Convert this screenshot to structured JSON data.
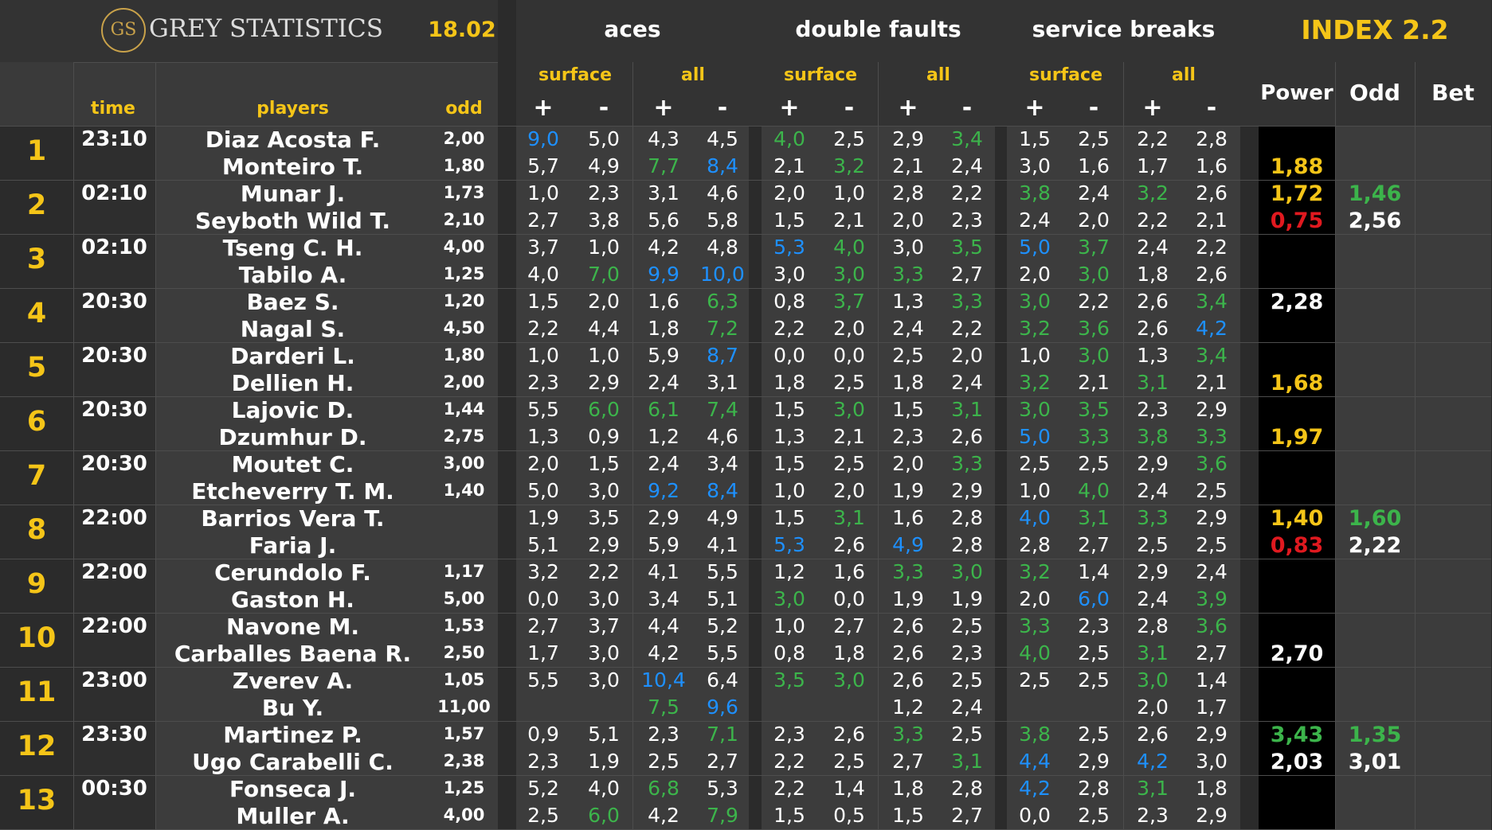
{
  "brand": {
    "logo_initials": "GS",
    "name": "GREY STATISTICS",
    "date": "18.02"
  },
  "groups": {
    "aces": "aces",
    "double_faults": "double faults",
    "service_breaks": "service breaks",
    "index": "INDEX 2.2"
  },
  "columns": {
    "time": "time",
    "players": "players",
    "odd": "odd",
    "surface": "surface",
    "all": "all",
    "plus": "+",
    "minus": "-",
    "power": "Power",
    "index_odd": "Odd",
    "bet": "Bet"
  },
  "colors": {
    "yellow": "#f5c518",
    "green": "#3cb44b",
    "blue": "#1e90ff",
    "red": "#e0191f",
    "white": "#ffffff"
  },
  "matches": [
    {
      "no": "1",
      "time": "23:10",
      "players": [
        {
          "name": "Diaz Acosta F.",
          "odd": "2,00",
          "stats": [
            "9,0",
            "5,0",
            "4,3",
            "4,5",
            "4,0",
            "2,5",
            "2,9",
            "3,4",
            "1,5",
            "2,5",
            "2,2",
            "2,8"
          ],
          "tones": [
            "b",
            "",
            "",
            "",
            "g",
            "",
            "",
            "g",
            "",
            "",
            "",
            ""
          ],
          "power": "",
          "power_tone": "",
          "idx_odd": "",
          "idx_tone": ""
        },
        {
          "name": "Monteiro T.",
          "odd": "1,80",
          "stats": [
            "5,7",
            "4,9",
            "7,7",
            "8,4",
            "2,1",
            "3,2",
            "2,1",
            "2,4",
            "3,0",
            "1,6",
            "1,7",
            "1,6"
          ],
          "tones": [
            "",
            "",
            "g",
            "b",
            "",
            "g",
            "",
            "",
            "",
            "",
            "",
            ""
          ],
          "power": "1,88",
          "power_tone": "y",
          "idx_odd": "",
          "idx_tone": ""
        }
      ]
    },
    {
      "no": "2",
      "time": "02:10",
      "players": [
        {
          "name": "Munar J.",
          "odd": "1,73",
          "stats": [
            "1,0",
            "2,3",
            "3,1",
            "4,6",
            "2,0",
            "1,0",
            "2,8",
            "2,2",
            "3,8",
            "2,4",
            "3,2",
            "2,6"
          ],
          "tones": [
            "",
            "",
            "",
            "",
            "",
            "",
            "",
            "",
            "g",
            "",
            "g",
            ""
          ],
          "power": "1,72",
          "power_tone": "y",
          "idx_odd": "1,46",
          "idx_tone": "g"
        },
        {
          "name": "Seyboth Wild T.",
          "odd": "2,10",
          "stats": [
            "2,7",
            "3,8",
            "5,6",
            "5,8",
            "1,5",
            "2,1",
            "2,0",
            "2,3",
            "2,4",
            "2,0",
            "2,2",
            "2,1"
          ],
          "tones": [
            "",
            "",
            "",
            "",
            "",
            "",
            "",
            "",
            "",
            "",
            "",
            ""
          ],
          "power": "0,75",
          "power_tone": "r",
          "idx_odd": "2,56",
          "idx_tone": ""
        }
      ]
    },
    {
      "no": "3",
      "time": "02:10",
      "players": [
        {
          "name": "Tseng C. H.",
          "odd": "4,00",
          "stats": [
            "3,7",
            "1,0",
            "4,2",
            "4,8",
            "5,3",
            "4,0",
            "3,0",
            "3,5",
            "5,0",
            "3,7",
            "2,4",
            "2,2"
          ],
          "tones": [
            "",
            "",
            "",
            "",
            "b",
            "g",
            "",
            "g",
            "b",
            "g",
            "",
            ""
          ],
          "power": "",
          "power_tone": "",
          "idx_odd": "",
          "idx_tone": ""
        },
        {
          "name": "Tabilo A.",
          "odd": "1,25",
          "stats": [
            "4,0",
            "7,0",
            "9,9",
            "10,0",
            "3,0",
            "3,0",
            "3,3",
            "2,7",
            "2,0",
            "3,0",
            "1,8",
            "2,6"
          ],
          "tones": [
            "",
            "g",
            "b",
            "b",
            "",
            "g",
            "g",
            "",
            "",
            "g",
            "",
            ""
          ],
          "power": "",
          "power_tone": "",
          "idx_odd": "",
          "idx_tone": ""
        }
      ]
    },
    {
      "no": "4",
      "time": "20:30",
      "players": [
        {
          "name": "Baez S.",
          "odd": "1,20",
          "stats": [
            "1,5",
            "2,0",
            "1,6",
            "6,3",
            "0,8",
            "3,7",
            "1,3",
            "3,3",
            "3,0",
            "2,2",
            "2,6",
            "3,4"
          ],
          "tones": [
            "",
            "",
            "",
            "g",
            "",
            "g",
            "",
            "g",
            "g",
            "",
            "",
            "g"
          ],
          "power": "2,28",
          "power_tone": "",
          "idx_odd": "",
          "idx_tone": ""
        },
        {
          "name": "Nagal S.",
          "odd": "4,50",
          "stats": [
            "2,2",
            "4,4",
            "1,8",
            "7,2",
            "2,2",
            "2,0",
            "2,4",
            "2,2",
            "3,2",
            "3,6",
            "2,6",
            "4,2"
          ],
          "tones": [
            "",
            "",
            "",
            "g",
            "",
            "",
            "",
            "",
            "g",
            "g",
            "",
            "b"
          ],
          "power": "",
          "power_tone": "",
          "idx_odd": "",
          "idx_tone": ""
        }
      ]
    },
    {
      "no": "5",
      "time": "20:30",
      "players": [
        {
          "name": "Darderi L.",
          "odd": "1,80",
          "stats": [
            "1,0",
            "1,0",
            "5,9",
            "8,7",
            "0,0",
            "0,0",
            "2,5",
            "2,0",
            "1,0",
            "3,0",
            "1,3",
            "3,4"
          ],
          "tones": [
            "",
            "",
            "",
            "b",
            "",
            "",
            "",
            "",
            "",
            "g",
            "",
            "g"
          ],
          "power": "",
          "power_tone": "",
          "idx_odd": "",
          "idx_tone": ""
        },
        {
          "name": "Dellien H.",
          "odd": "2,00",
          "stats": [
            "2,3",
            "2,9",
            "2,4",
            "3,1",
            "1,8",
            "2,5",
            "1,8",
            "2,4",
            "3,2",
            "2,1",
            "3,1",
            "2,1"
          ],
          "tones": [
            "",
            "",
            "",
            "",
            "",
            "",
            "",
            "",
            "g",
            "",
            "g",
            ""
          ],
          "power": "1,68",
          "power_tone": "y",
          "idx_odd": "",
          "idx_tone": ""
        }
      ]
    },
    {
      "no": "6",
      "time": "20:30",
      "players": [
        {
          "name": "Lajovic D.",
          "odd": "1,44",
          "stats": [
            "5,5",
            "6,0",
            "6,1",
            "7,4",
            "1,5",
            "3,0",
            "1,5",
            "3,1",
            "3,0",
            "3,5",
            "2,3",
            "2,9"
          ],
          "tones": [
            "",
            "g",
            "g",
            "g",
            "",
            "g",
            "",
            "g",
            "g",
            "g",
            "",
            ""
          ],
          "power": "",
          "power_tone": "",
          "idx_odd": "",
          "idx_tone": ""
        },
        {
          "name": "Dzumhur D.",
          "odd": "2,75",
          "stats": [
            "1,3",
            "0,9",
            "1,2",
            "4,6",
            "1,3",
            "2,1",
            "2,3",
            "2,6",
            "5,0",
            "3,3",
            "3,8",
            "3,3"
          ],
          "tones": [
            "",
            "",
            "",
            "",
            "",
            "",
            "",
            "",
            "b",
            "g",
            "g",
            "g"
          ],
          "power": "1,97",
          "power_tone": "y",
          "idx_odd": "",
          "idx_tone": ""
        }
      ]
    },
    {
      "no": "7",
      "time": "20:30",
      "players": [
        {
          "name": "Moutet C.",
          "odd": "3,00",
          "stats": [
            "2,0",
            "1,5",
            "2,4",
            "3,4",
            "1,5",
            "2,5",
            "2,0",
            "3,3",
            "2,5",
            "2,5",
            "2,9",
            "3,6"
          ],
          "tones": [
            "",
            "",
            "",
            "",
            "",
            "",
            "",
            "g",
            "",
            "",
            "",
            "g"
          ],
          "power": "",
          "power_tone": "",
          "idx_odd": "",
          "idx_tone": ""
        },
        {
          "name": "Etcheverry T. M.",
          "odd": "1,40",
          "stats": [
            "5,0",
            "3,0",
            "9,2",
            "8,4",
            "1,0",
            "2,0",
            "1,9",
            "2,9",
            "1,0",
            "4,0",
            "2,4",
            "2,5"
          ],
          "tones": [
            "",
            "",
            "b",
            "b",
            "",
            "",
            "",
            "",
            "",
            "g",
            "",
            ""
          ],
          "power": "",
          "power_tone": "",
          "idx_odd": "",
          "idx_tone": ""
        }
      ]
    },
    {
      "no": "8",
      "time": "22:00",
      "players": [
        {
          "name": "Barrios Vera T.",
          "odd": "",
          "stats": [
            "1,9",
            "3,5",
            "2,9",
            "4,9",
            "1,5",
            "3,1",
            "1,6",
            "2,8",
            "4,0",
            "3,1",
            "3,3",
            "2,9"
          ],
          "tones": [
            "",
            "",
            "",
            "",
            "",
            "g",
            "",
            "",
            "b",
            "g",
            "g",
            ""
          ],
          "power": "1,40",
          "power_tone": "y",
          "idx_odd": "1,60",
          "idx_tone": "g"
        },
        {
          "name": "Faria J.",
          "odd": "",
          "stats": [
            "5,1",
            "2,9",
            "5,9",
            "4,1",
            "5,3",
            "2,6",
            "4,9",
            "2,8",
            "2,8",
            "2,7",
            "2,5",
            "2,5"
          ],
          "tones": [
            "",
            "",
            "",
            "",
            "b",
            "",
            "b",
            "",
            "",
            "",
            "",
            ""
          ],
          "power": "0,83",
          "power_tone": "r",
          "idx_odd": "2,22",
          "idx_tone": ""
        }
      ]
    },
    {
      "no": "9",
      "time": "22:00",
      "players": [
        {
          "name": "Cerundolo F.",
          "odd": "1,17",
          "stats": [
            "3,2",
            "2,2",
            "4,1",
            "5,5",
            "1,2",
            "1,6",
            "3,3",
            "3,0",
            "3,2",
            "1,4",
            "2,9",
            "2,4"
          ],
          "tones": [
            "",
            "",
            "",
            "",
            "",
            "",
            "g",
            "g",
            "g",
            "",
            "",
            ""
          ],
          "power": "",
          "power_tone": "",
          "idx_odd": "",
          "idx_tone": ""
        },
        {
          "name": "Gaston H.",
          "odd": "5,00",
          "stats": [
            "0,0",
            "3,0",
            "3,4",
            "5,1",
            "3,0",
            "0,0",
            "1,9",
            "1,9",
            "2,0",
            "6,0",
            "2,4",
            "3,9"
          ],
          "tones": [
            "",
            "",
            "",
            "",
            "g",
            "",
            "",
            "",
            "",
            "b",
            "",
            "g"
          ],
          "power": "",
          "power_tone": "",
          "idx_odd": "",
          "idx_tone": ""
        }
      ]
    },
    {
      "no": "10",
      "time": "22:00",
      "players": [
        {
          "name": "Navone M.",
          "odd": "1,53",
          "stats": [
            "2,7",
            "3,7",
            "4,4",
            "5,2",
            "1,0",
            "2,7",
            "2,6",
            "2,5",
            "3,3",
            "2,3",
            "2,8",
            "3,6"
          ],
          "tones": [
            "",
            "",
            "",
            "",
            "",
            "",
            "",
            "",
            "g",
            "",
            "",
            "g"
          ],
          "power": "",
          "power_tone": "",
          "idx_odd": "",
          "idx_tone": ""
        },
        {
          "name": "Carballes Baena R.",
          "odd": "2,50",
          "stats": [
            "1,7",
            "3,0",
            "4,2",
            "5,5",
            "0,8",
            "1,8",
            "2,6",
            "2,3",
            "4,0",
            "2,5",
            "3,1",
            "2,7"
          ],
          "tones": [
            "",
            "",
            "",
            "",
            "",
            "",
            "",
            "",
            "g",
            "",
            "g",
            ""
          ],
          "power": "2,70",
          "power_tone": "",
          "idx_odd": "",
          "idx_tone": ""
        }
      ]
    },
    {
      "no": "11",
      "time": "23:00",
      "players": [
        {
          "name": "Zverev A.",
          "odd": "1,05",
          "stats": [
            "5,5",
            "3,0",
            "10,4",
            "6,4",
            "3,5",
            "3,0",
            "2,6",
            "2,5",
            "2,5",
            "2,5",
            "3,0",
            "1,4"
          ],
          "tones": [
            "",
            "",
            "b",
            "",
            "g",
            "g",
            "",
            "",
            "",
            "",
            "g",
            ""
          ],
          "power": "",
          "power_tone": "",
          "idx_odd": "",
          "idx_tone": ""
        },
        {
          "name": "Bu Y.",
          "odd": "11,00",
          "stats": [
            "",
            "",
            "7,5",
            "9,6",
            "",
            "",
            "1,2",
            "2,4",
            "",
            "",
            "2,0",
            "1,7"
          ],
          "tones": [
            "",
            "",
            "g",
            "b",
            "",
            "",
            "",
            "",
            "",
            "",
            "",
            ""
          ],
          "power": "",
          "power_tone": "",
          "idx_odd": "",
          "idx_tone": ""
        }
      ]
    },
    {
      "no": "12",
      "time": "23:30",
      "players": [
        {
          "name": "Martinez P.",
          "odd": "1,57",
          "stats": [
            "0,9",
            "5,1",
            "2,3",
            "7,1",
            "2,3",
            "2,6",
            "3,3",
            "2,5",
            "3,8",
            "2,5",
            "2,6",
            "2,9"
          ],
          "tones": [
            "",
            "",
            "",
            "g",
            "",
            "",
            "g",
            "",
            "g",
            "",
            "",
            ""
          ],
          "power": "3,43",
          "power_tone": "g",
          "idx_odd": "1,35",
          "idx_tone": "g"
        },
        {
          "name": "Ugo Carabelli C.",
          "odd": "2,38",
          "stats": [
            "2,3",
            "1,9",
            "2,5",
            "2,7",
            "2,2",
            "2,5",
            "2,7",
            "3,1",
            "4,4",
            "2,9",
            "4,2",
            "3,0"
          ],
          "tones": [
            "",
            "",
            "",
            "",
            "",
            "",
            "",
            "g",
            "b",
            "",
            "b",
            ""
          ],
          "power": "2,03",
          "power_tone": "",
          "idx_odd": "3,01",
          "idx_tone": ""
        }
      ]
    },
    {
      "no": "13",
      "time": "00:30",
      "players": [
        {
          "name": "Fonseca J.",
          "odd": "1,25",
          "stats": [
            "5,2",
            "4,0",
            "6,8",
            "5,3",
            "2,2",
            "1,4",
            "1,8",
            "2,8",
            "4,2",
            "2,8",
            "3,1",
            "1,8"
          ],
          "tones": [
            "",
            "",
            "g",
            "",
            "",
            "",
            "",
            "",
            "b",
            "",
            "g",
            ""
          ],
          "power": "",
          "power_tone": "",
          "idx_odd": "",
          "idx_tone": ""
        },
        {
          "name": "Muller A.",
          "odd": "4,00",
          "stats": [
            "2,5",
            "6,0",
            "4,2",
            "7,9",
            "1,5",
            "0,5",
            "1,5",
            "2,7",
            "0,0",
            "2,5",
            "2,3",
            "2,9"
          ],
          "tones": [
            "",
            "g",
            "",
            "g",
            "",
            "",
            "",
            "",
            "",
            "",
            "",
            ""
          ],
          "power": "",
          "power_tone": "",
          "idx_odd": "",
          "idx_tone": ""
        }
      ]
    }
  ]
}
